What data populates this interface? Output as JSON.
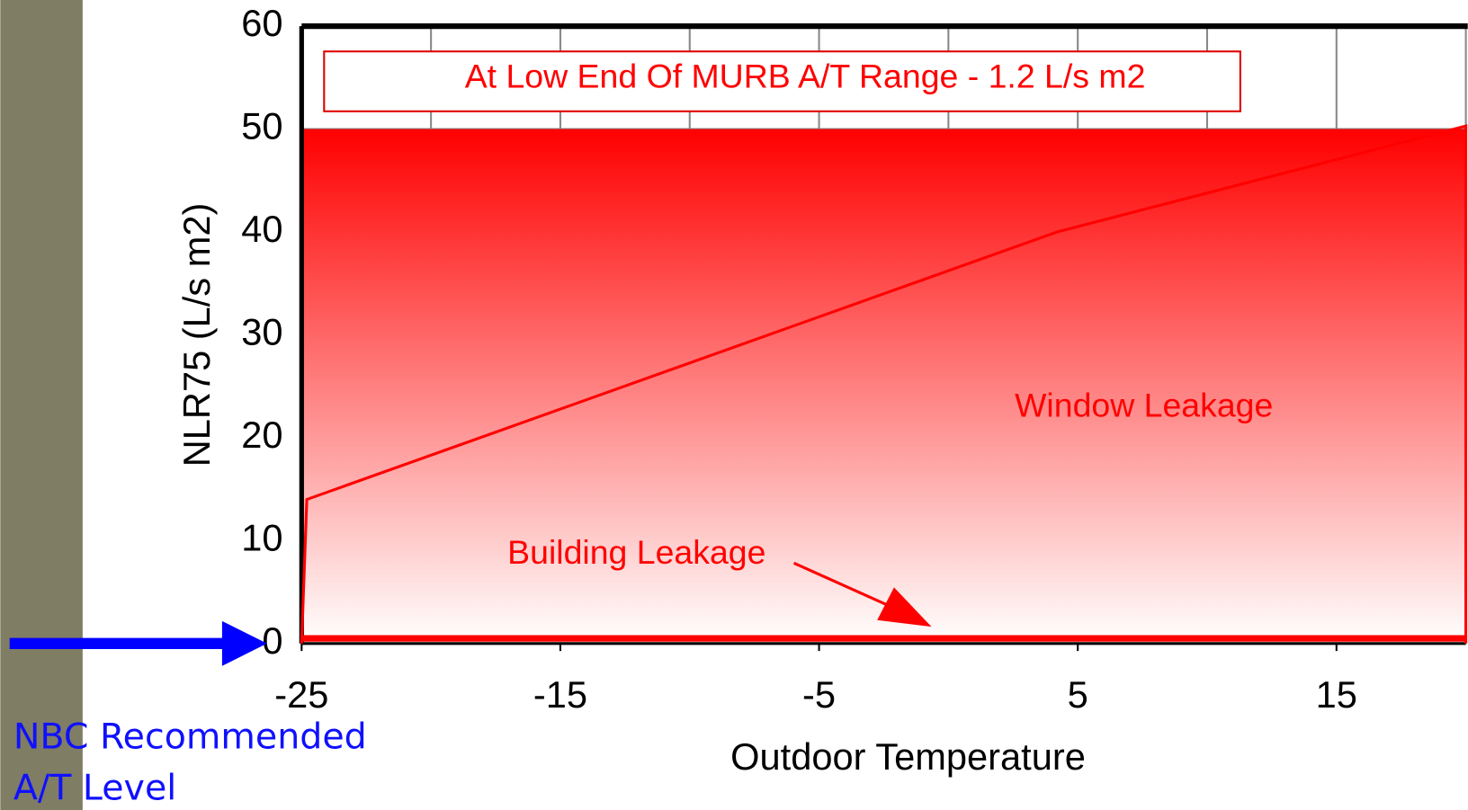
{
  "chart_data": {
    "type": "line",
    "title": "At Low End Of MURB A/T Range - 1.2 L/s m2",
    "x_label": "Outdoor Temperature",
    "y_label": "NLR75 (L/s m2)",
    "xlim": [
      -25,
      20
    ],
    "xticks": [
      -25,
      -15,
      -5,
      5,
      15
    ],
    "xgrid": [
      -25,
      -20,
      -15,
      -10,
      -5,
      0,
      5,
      10,
      15,
      20
    ],
    "ylim": [
      0,
      60
    ],
    "yticks": [
      0,
      10,
      20,
      30,
      40,
      50,
      60
    ],
    "shaded_area": {
      "from": 0,
      "to": 50,
      "color": "#ff0000"
    },
    "series": [
      {
        "name": "Window Leakage",
        "color": "#ff0000",
        "x": [
          -25,
          -24.8,
          4.2,
          20,
          20
        ],
        "values": [
          0,
          14,
          40,
          50.3,
          0
        ]
      },
      {
        "name": "Building Leakage",
        "color": "#ff0000",
        "x": [
          -25,
          20
        ],
        "values": [
          0.5,
          0.5
        ]
      }
    ],
    "annotations": {
      "window": "Window Leakage",
      "building": "Building Leakage",
      "nbc_line1": "NBC Recommended",
      "nbc_line2": "A/T Level"
    }
  }
}
